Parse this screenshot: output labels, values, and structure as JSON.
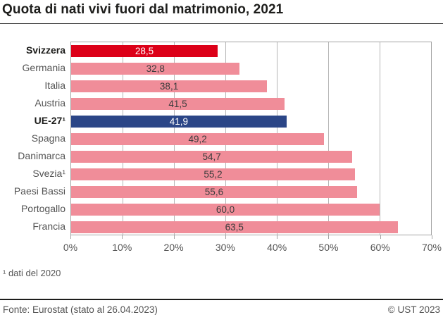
{
  "title": "Quota di nati vivi fuori dal matrimonio, 2021",
  "footnote": "¹ dati del 2020",
  "footer": {
    "source": "Fonte: Eurostat (stato al 26.04.2023)",
    "copyright": "© UST 2023"
  },
  "colors": {
    "switzerland_red": "#dc0018",
    "default_pink": "#f08d99",
    "eu_blue": "#2b4687",
    "gridline": "#b5b5b5",
    "plot_border": "#a3a3a3",
    "text_gray": "#545454",
    "text_black": "#1d1d1b",
    "value_dark": "#3c3c3c",
    "value_light": "#ffffff"
  },
  "chart_data": {
    "type": "bar",
    "orientation": "horizontal",
    "title": "Quota di nati vivi fuori dal matrimonio, 2021",
    "xlabel": "",
    "ylabel": "",
    "xlim": [
      0,
      70
    ],
    "x_ticks": [
      "0%",
      "10%",
      "20%",
      "30%",
      "40%",
      "50%",
      "60%",
      "70%"
    ],
    "grid": true,
    "legend": "none",
    "value_label_position": "centered-inside-bar",
    "categories": [
      "Svizzera",
      "Germania",
      "Italia",
      "Austria",
      "UE-27¹",
      "Spagna",
      "Danimarca",
      "Svezia¹",
      "Paesi Bassi",
      "Portogallo",
      "Francia"
    ],
    "values": [
      28.5,
      32.8,
      38.1,
      41.5,
      41.9,
      49.2,
      54.7,
      55.2,
      55.6,
      60.0,
      63.5
    ],
    "rows": [
      {
        "label": "Svizzera",
        "value": 28.5,
        "display": "28,5",
        "emphasis": "switzerland"
      },
      {
        "label": "Germania",
        "value": 32.8,
        "display": "32,8",
        "emphasis": "none"
      },
      {
        "label": "Italia",
        "value": 38.1,
        "display": "38,1",
        "emphasis": "none"
      },
      {
        "label": "Austria",
        "value": 41.5,
        "display": "41,5",
        "emphasis": "none"
      },
      {
        "label": "UE-27¹",
        "value": 41.9,
        "display": "41,9",
        "emphasis": "eu"
      },
      {
        "label": "Spagna",
        "value": 49.2,
        "display": "49,2",
        "emphasis": "none"
      },
      {
        "label": "Danimarca",
        "value": 54.7,
        "display": "54,7",
        "emphasis": "none"
      },
      {
        "label": "Svezia¹",
        "value": 55.2,
        "display": "55,2",
        "emphasis": "none"
      },
      {
        "label": "Paesi Bassi",
        "value": 55.6,
        "display": "55,6",
        "emphasis": "none"
      },
      {
        "label": "Portogallo",
        "value": 60.0,
        "display": "60,0",
        "emphasis": "none"
      },
      {
        "label": "Francia",
        "value": 63.5,
        "display": "63,5",
        "emphasis": "none"
      }
    ]
  }
}
